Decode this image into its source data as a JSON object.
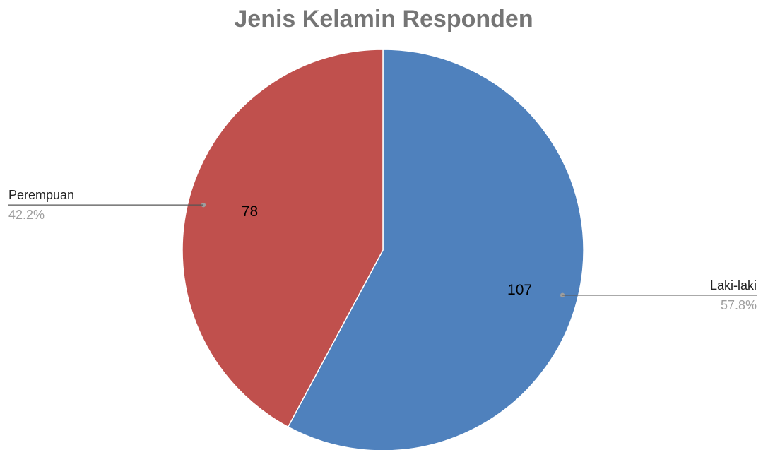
{
  "chart_data": {
    "type": "pie",
    "title": "Jenis Kelamin Responden",
    "slices": [
      {
        "label": "Laki-laki",
        "value": 107,
        "percent": "57.8%",
        "color": "#4f81bd"
      },
      {
        "label": "Perempuan",
        "value": 78,
        "percent": "42.2%",
        "color": "#c0504d"
      }
    ],
    "start_angle_deg": 0,
    "direction": "clockwise",
    "legend": "leader-lines",
    "value_labels": "inside"
  }
}
